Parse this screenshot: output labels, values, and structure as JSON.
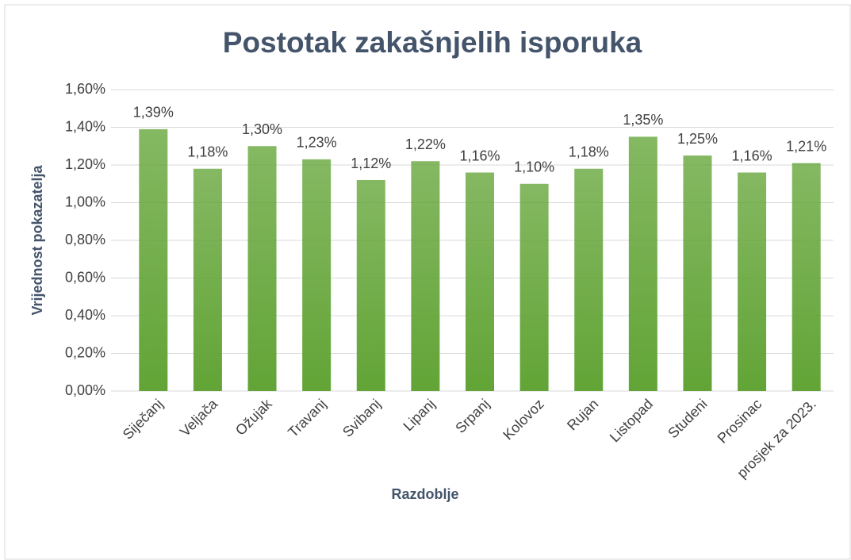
{
  "chart_data": {
    "type": "bar",
    "title": "Postotak zakašnjelih isporuka",
    "x_label": "Razdoblje",
    "y_label": "Vrijednost pokazatelja",
    "categories": [
      "Siječanj",
      "Veljača",
      "Ožujak",
      "Travanj",
      "Svibanj",
      "Lipanj",
      "Srpanj",
      "Kolovoz",
      "Rujan",
      "Listopad",
      "Studeni",
      "Prosinac",
      "prosjek za 2023."
    ],
    "values": [
      1.39,
      1.18,
      1.3,
      1.23,
      1.12,
      1.22,
      1.16,
      1.1,
      1.18,
      1.35,
      1.25,
      1.16,
      1.21
    ],
    "value_labels": [
      "1,39%",
      "1,18%",
      "1,30%",
      "1,23%",
      "1,12%",
      "1,22%",
      "1,16%",
      "1,10%",
      "1,18%",
      "1,35%",
      "1,25%",
      "1,16%",
      "1,21%"
    ],
    "color": "#62a436",
    "ylim": [
      0,
      1.6
    ],
    "yticks": [
      {
        "value": 0,
        "label": "0,00%"
      },
      {
        "value": 0.2,
        "label": "0,20%"
      },
      {
        "value": 0.4,
        "label": "0,40%"
      },
      {
        "value": 0.6,
        "label": "0,60%"
      },
      {
        "value": 0.8,
        "label": "0,80%"
      },
      {
        "value": 1.0,
        "label": "1,00%"
      },
      {
        "value": 1.2,
        "label": "1,20%"
      },
      {
        "value": 1.4,
        "label": "1,40%"
      },
      {
        "value": 1.6,
        "label": "1,60%"
      }
    ],
    "grid": true
  }
}
